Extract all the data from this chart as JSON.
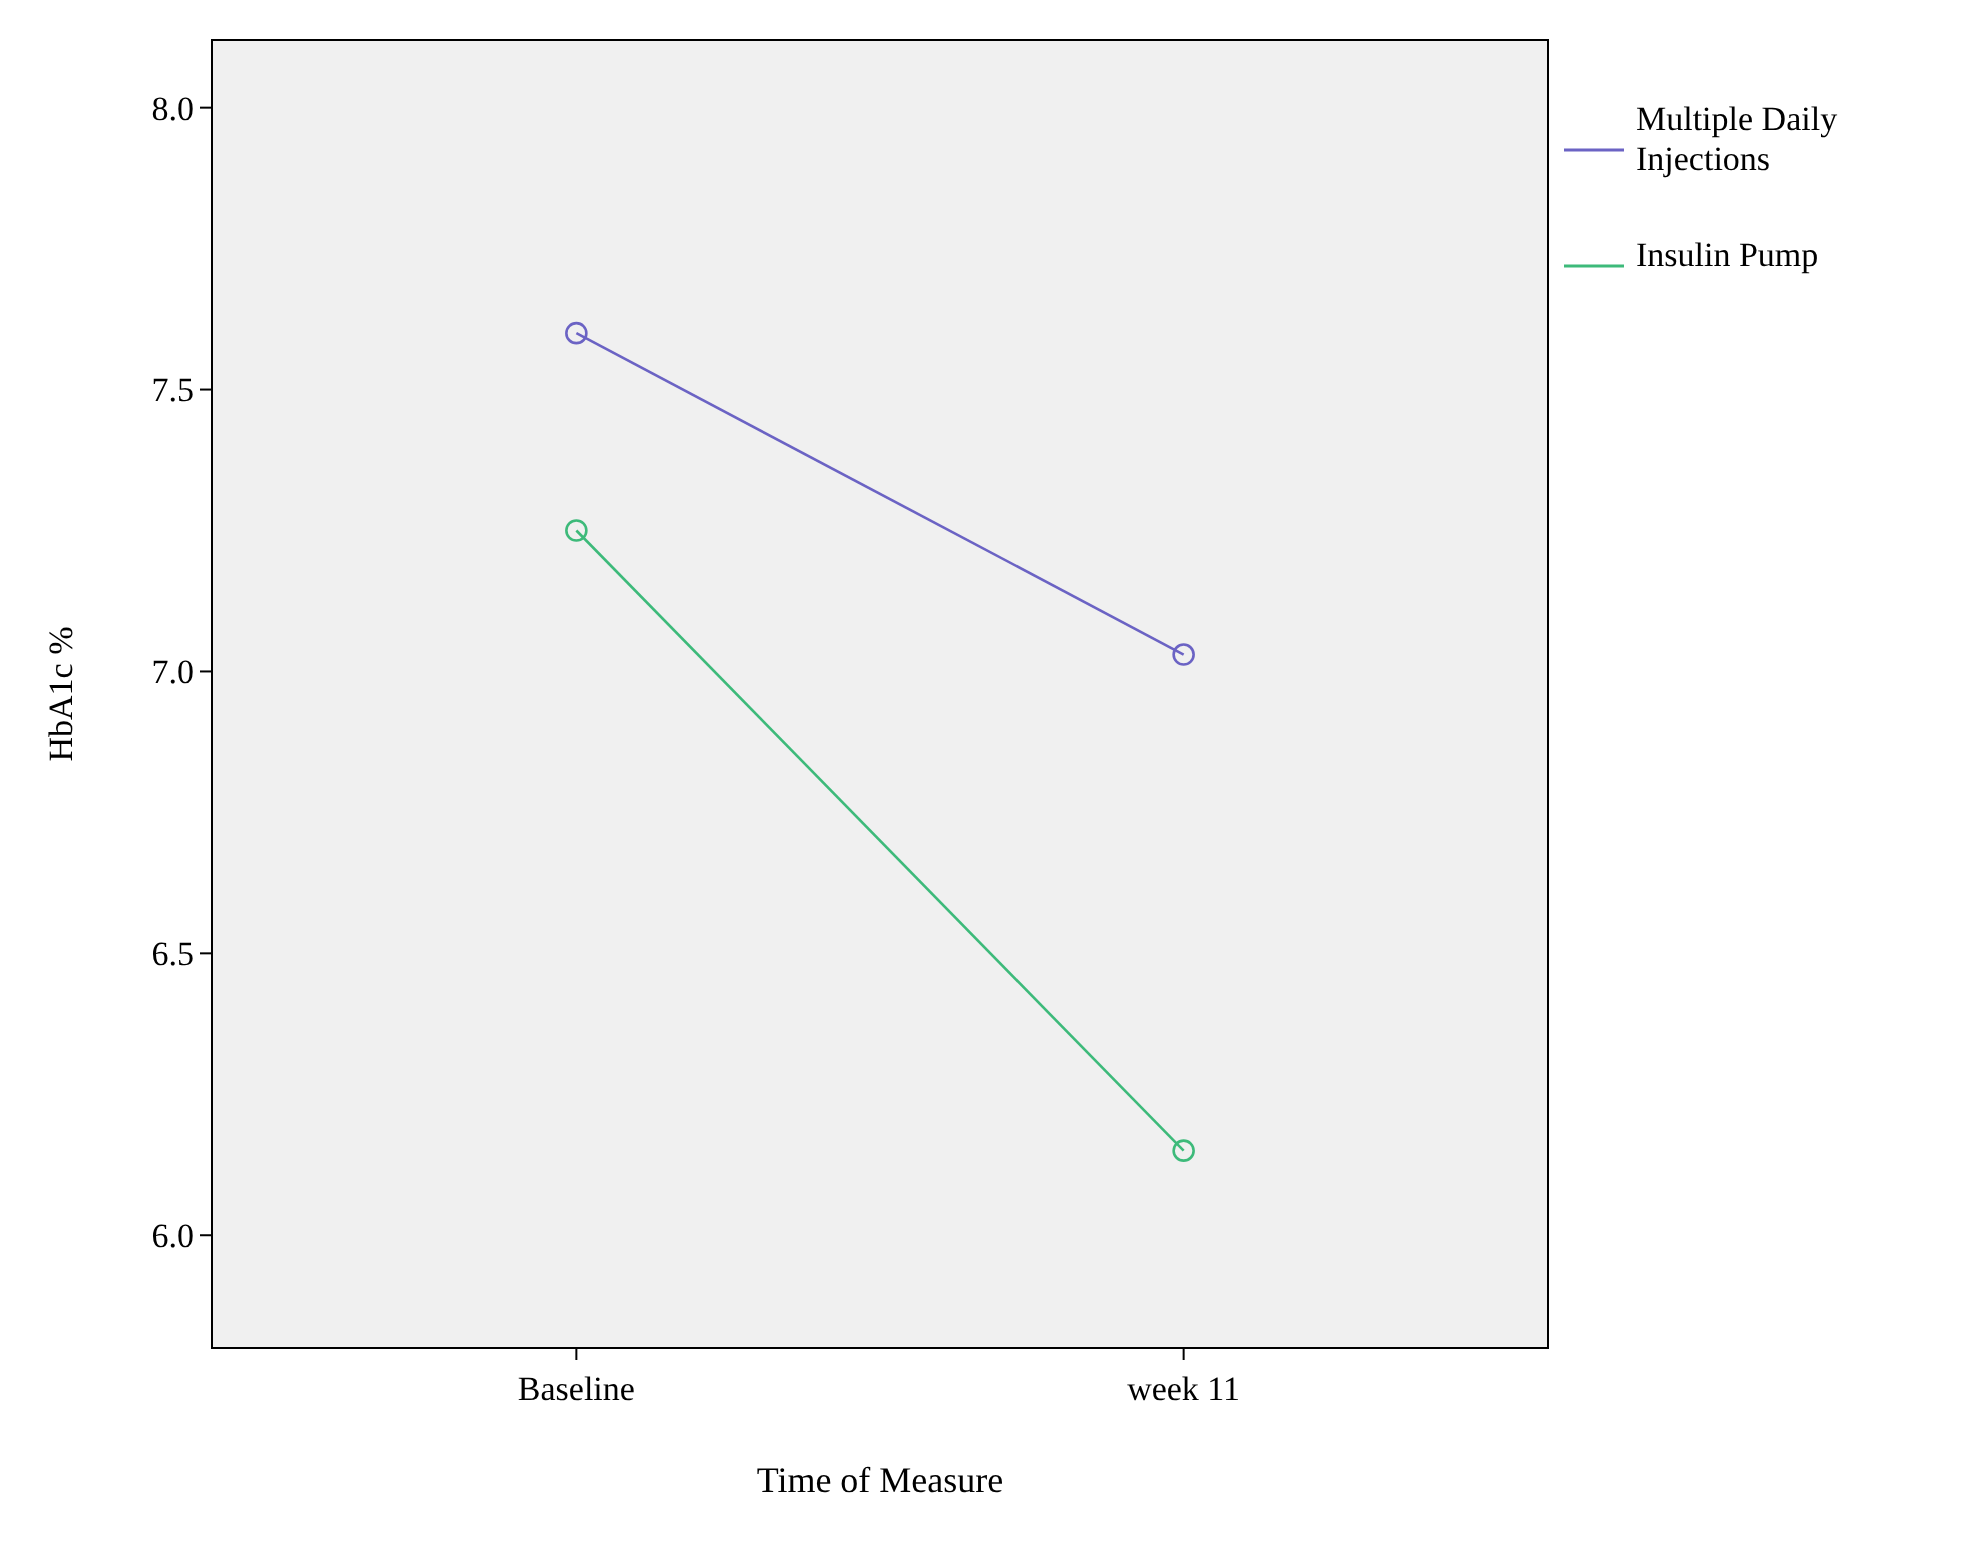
{
  "chart_data": {
    "type": "line",
    "xlabel": "Time of Measure",
    "ylabel": "HbA1c %",
    "categories": [
      "Baseline",
      "week 11"
    ],
    "series": [
      {
        "name": "Multiple Daily Injections",
        "color": "#6b63c4",
        "values": [
          7.6,
          7.03
        ]
      },
      {
        "name": "Insulin Pump",
        "color": "#3dba7a",
        "values": [
          7.25,
          6.15
        ]
      }
    ],
    "ylim": [
      5.8,
      8.12
    ],
    "yticks": [
      {
        "value": 6,
        "label": "6.0"
      },
      {
        "value": 6.5,
        "label": "6.5"
      },
      {
        "value": 7,
        "label": "7.0"
      },
      {
        "value": 7.5,
        "label": "7.5"
      },
      {
        "value": 8,
        "label": "8.0"
      }
    ],
    "grid": false,
    "legend": "top right",
    "marker": "circle",
    "line_style": "solid"
  }
}
